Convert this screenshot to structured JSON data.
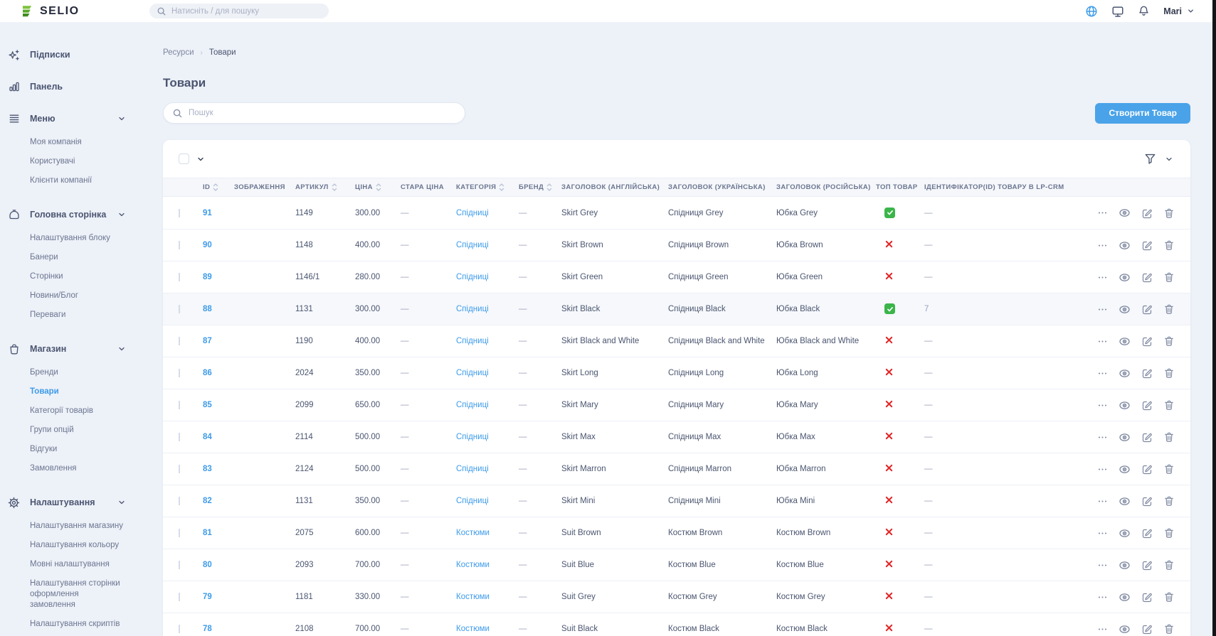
{
  "header": {
    "logo_text": "SELIO",
    "search_placeholder": "Натисніть / для пошуку",
    "user_name": "Mari"
  },
  "colors": {
    "accent_blue": "#3d9be9",
    "button_blue": "#4aa3e8",
    "success_green": "#3bb54a",
    "danger_red": "#e02b2b",
    "logo_green": "#67b32e"
  },
  "sidebar": {
    "sections": [
      {
        "icon": "sparkles",
        "label": "Підписки",
        "expandable": false,
        "children": []
      },
      {
        "icon": "bar-chart",
        "label": "Панель",
        "expandable": false,
        "children": []
      },
      {
        "icon": "menu-lines",
        "label": "Меню",
        "expandable": true,
        "children": [
          {
            "label": "Моя компанія"
          },
          {
            "label": "Користувачі"
          },
          {
            "label": "Клієнти компанії"
          }
        ]
      },
      {
        "icon": "home-bag",
        "label": "Головна сторінка",
        "expandable": true,
        "children": [
          {
            "label": "Налаштування блоку"
          },
          {
            "label": "Банери"
          },
          {
            "label": "Сторінки"
          },
          {
            "label": "Новини/Блог"
          },
          {
            "label": "Переваги"
          }
        ]
      },
      {
        "icon": "shopping-bag",
        "label": "Магазин",
        "expandable": true,
        "children": [
          {
            "label": "Бренди"
          },
          {
            "label": "Товари",
            "active": true
          },
          {
            "label": "Категорії товарів"
          },
          {
            "label": "Групи опцій"
          },
          {
            "label": "Відгуки"
          },
          {
            "label": "Замовлення"
          }
        ]
      },
      {
        "icon": "gear",
        "label": "Налаштування",
        "expandable": true,
        "children": [
          {
            "label": "Налаштування магазину"
          },
          {
            "label": "Налаштування кольору"
          },
          {
            "label": "Мовні налаштування"
          },
          {
            "label": "Налаштування сторінки оформлення замовлення"
          },
          {
            "label": "Налаштування скриптів"
          }
        ]
      }
    ]
  },
  "breadcrumb": {
    "parent": "Ресурси",
    "current": "Товари"
  },
  "page": {
    "title": "Товари",
    "search_placeholder": "Пошук",
    "create_button": "Створити Товар"
  },
  "table": {
    "columns": [
      {
        "label": "ID",
        "sortable": true
      },
      {
        "label": "ЗОБРАЖЕННЯ",
        "sortable": false
      },
      {
        "label": "АРТИКУЛ",
        "sortable": true
      },
      {
        "label": "ЦІНА",
        "sortable": true
      },
      {
        "label": "СТАРА ЦІНА",
        "sortable": false
      },
      {
        "label": "КАТЕГОРІЯ",
        "sortable": true
      },
      {
        "label": "БРЕНД",
        "sortable": true
      },
      {
        "label": "ЗАГОЛОВОК (АНГЛІЙСЬКА)",
        "sortable": false
      },
      {
        "label": "ЗАГОЛОВОК (УКРАЇНСЬКА)",
        "sortable": false
      },
      {
        "label": "ЗАГОЛОВОК (РОСІЙСЬКА)",
        "sortable": false
      },
      {
        "label": "ТОП ТОВАР",
        "sortable": false
      },
      {
        "label": "ІДЕНТИФІКАТОР(ID) ТОВАРУ В LP-CRM",
        "sortable": false
      }
    ],
    "rows": [
      {
        "id": "91",
        "sku": "1149",
        "price": "300.00",
        "old_price": "—",
        "category": "Спідниці",
        "brand": "—",
        "title_en": "Skirt Grey",
        "title_uk": "Спідниця Grey",
        "title_ru": "Юбка Grey",
        "top_product": true,
        "lp_crm_id": "—",
        "highlighted": false,
        "image_colors": [
          "#7a7d84",
          "#3a3d44"
        ]
      },
      {
        "id": "90",
        "sku": "1148",
        "price": "400.00",
        "old_price": "—",
        "category": "Спідниці",
        "brand": "—",
        "title_en": "Skirt Brown",
        "title_uk": "Спідниця Brown",
        "title_ru": "Юбка Brown",
        "top_product": false,
        "lp_crm_id": "—",
        "highlighted": false,
        "image_colors": [
          "#3b3a40",
          "#c9a87c"
        ]
      },
      {
        "id": "89",
        "sku": "1146/1",
        "price": "280.00",
        "old_price": "—",
        "category": "Спідниці",
        "brand": "—",
        "title_en": "Skirt Green",
        "title_uk": "Спідниця Green",
        "title_ru": "Юбка Green",
        "top_product": false,
        "lp_crm_id": "—",
        "highlighted": false,
        "image_colors": [
          "#8a8a60",
          "#4a4d3a"
        ]
      },
      {
        "id": "88",
        "sku": "1131",
        "price": "300.00",
        "old_price": "—",
        "category": "Спідниці",
        "brand": "—",
        "title_en": "Skirt Black",
        "title_uk": "Спідниця Black",
        "title_ru": "Юбка Black",
        "top_product": true,
        "lp_crm_id": "7",
        "highlighted": true,
        "image_colors": [
          "#e0457b",
          "#2f3138"
        ]
      },
      {
        "id": "87",
        "sku": "1190",
        "price": "400.00",
        "old_price": "—",
        "category": "Спідниці",
        "brand": "—",
        "title_en": "Skirt Black and White",
        "title_uk": "Спідниця Black and White",
        "title_ru": "Юбка Black and White",
        "top_product": false,
        "lp_crm_id": "—",
        "highlighted": false,
        "image_colors": [
          "#d8d8d4",
          "#8e9094"
        ]
      },
      {
        "id": "86",
        "sku": "2024",
        "price": "350.00",
        "old_price": "—",
        "category": "Спідниці",
        "brand": "—",
        "title_en": "Skirt Long",
        "title_uk": "Спідниця Long",
        "title_ru": "Юбка Long",
        "top_product": false,
        "lp_crm_id": "—",
        "highlighted": false,
        "image_colors": [
          "#55585f",
          "#23252b"
        ]
      },
      {
        "id": "85",
        "sku": "2099",
        "price": "650.00",
        "old_price": "—",
        "category": "Спідниці",
        "brand": "—",
        "title_en": "Skirt Mary",
        "title_uk": "Спідниця Mary",
        "title_ru": "Юбка Mary",
        "top_product": false,
        "lp_crm_id": "—",
        "highlighted": false,
        "image_colors": [
          "#e8e8ea",
          "#2e3036"
        ]
      },
      {
        "id": "84",
        "sku": "2114",
        "price": "500.00",
        "old_price": "—",
        "category": "Спідниці",
        "brand": "—",
        "title_en": "Skirt Max",
        "title_uk": "Спідниця Max",
        "title_ru": "Юбка Max",
        "top_product": false,
        "lp_crm_id": "—",
        "highlighted": false,
        "image_colors": [
          "#3a3d44",
          "#9a9da5"
        ]
      },
      {
        "id": "83",
        "sku": "2124",
        "price": "500.00",
        "old_price": "—",
        "category": "Спідниці",
        "brand": "—",
        "title_en": "Skirt Marron",
        "title_uk": "Спідниця Marron",
        "title_ru": "Юбка Marron",
        "top_product": false,
        "lp_crm_id": "—",
        "highlighted": false,
        "image_colors": [
          "#7c2f4a",
          "#c9c5c0"
        ]
      },
      {
        "id": "82",
        "sku": "1131",
        "price": "350.00",
        "old_price": "—",
        "category": "Спідниці",
        "brand": "—",
        "title_en": "Skirt Mini",
        "title_uk": "Спідниця Mini",
        "title_ru": "Юбка Mini",
        "top_product": false,
        "lp_crm_id": "—",
        "highlighted": false,
        "image_colors": [
          "#d9d9d9",
          "#2e3036"
        ]
      },
      {
        "id": "81",
        "sku": "2075",
        "price": "600.00",
        "old_price": "—",
        "category": "Костюми",
        "brand": "—",
        "title_en": "Suit Brown",
        "title_uk": "Костюм Brown",
        "title_ru": "Костюм Brown",
        "top_product": false,
        "lp_crm_id": "—",
        "highlighted": false,
        "image_colors": [
          "#8a6a55",
          "#5a4638"
        ]
      },
      {
        "id": "80",
        "sku": "2093",
        "price": "700.00",
        "old_price": "—",
        "category": "Костюми",
        "brand": "—",
        "title_en": "Suit Blue",
        "title_uk": "Костюм Blue",
        "title_ru": "Костюм Blue",
        "top_product": false,
        "lp_crm_id": "—",
        "highlighted": false,
        "image_colors": [
          "#8a9ade",
          "#6576c4"
        ]
      },
      {
        "id": "79",
        "sku": "1181",
        "price": "330.00",
        "old_price": "—",
        "category": "Костюми",
        "brand": "—",
        "title_en": "Suit Grey",
        "title_uk": "Костюм Grey",
        "title_ru": "Костюм Grey",
        "top_product": false,
        "lp_crm_id": "—",
        "highlighted": false,
        "image_colors": [
          "#9a9da5",
          "#63666e"
        ]
      },
      {
        "id": "78",
        "sku": "2108",
        "price": "700.00",
        "old_price": "—",
        "category": "Костюми",
        "brand": "—",
        "title_en": "Suit Black",
        "title_uk": "Костюм Black",
        "title_ru": "Костюм Black",
        "top_product": false,
        "lp_crm_id": "—",
        "highlighted": false,
        "image_colors": [
          "#2e3550",
          "#d9d9d9"
        ]
      }
    ]
  }
}
